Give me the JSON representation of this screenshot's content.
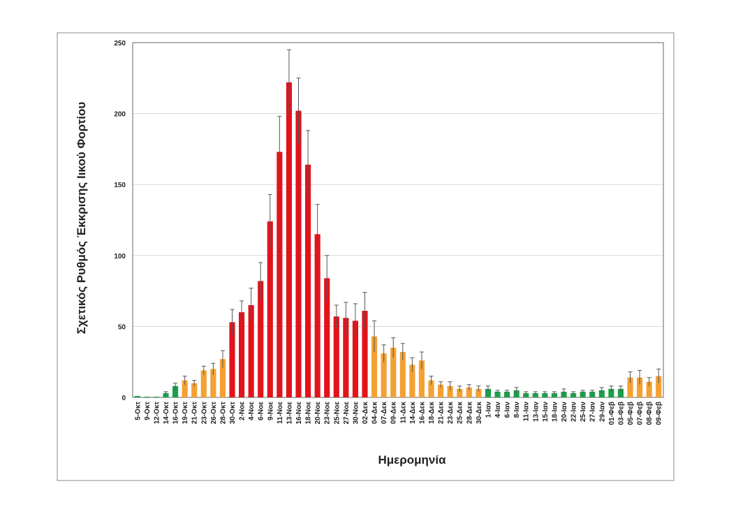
{
  "chart_data": {
    "type": "bar",
    "y_label": "Σχετικός Ρυθμός Έκκρισης Ιικού Φορτίου",
    "x_label": "Ημερομηνία",
    "categories": [
      "5-Οκτ",
      "9-Οκτ",
      "12-Οκτ",
      "14-Οκτ",
      "16-Οκτ",
      "19-Οκτ",
      "21-Οκτ",
      "23-Οκτ",
      "26-Οκτ",
      "28-Οκτ",
      "30-Οκτ",
      "2-Νοε",
      "4-Νοε",
      "6-Νοε",
      "9-Νοε",
      "11-Νοε",
      "13-Νοε",
      "16-Νοε",
      "18-Νοε",
      "20-Νοε",
      "23-Νοε",
      "25-Νοε",
      "27-Νοε",
      "30-Νοε",
      "02-Δεκ",
      "04-Δεκ",
      "07-Δεκ",
      "09-Δεκ",
      "11-Δεκ",
      "14-Δεκ",
      "16-Δεκ",
      "18-Δεκ",
      "21-Δεκ",
      "23-Δεκ",
      "25-Δεκ",
      "28-Δεκ",
      "30-Δεκ",
      "1-Ιαν",
      "4-Ιαν",
      "6-Ιαν",
      "8-Ιαν",
      "11-Ιαν",
      "13-Ιαν",
      "15-Ιαν",
      "18-Ιαν",
      "20-Ιαν",
      "22-Ιαν",
      "25-Ιαν",
      "27-Ιαν",
      "29-Ιαν",
      "01-Φεβ",
      "03-Φεβ",
      "05-Φεβ",
      "07-Φεβ",
      "08-Φεβ",
      "09-Φεβ"
    ],
    "values": [
      1,
      0.5,
      0.5,
      3,
      8,
      12,
      10,
      19,
      20,
      27,
      53,
      60,
      65,
      82,
      124,
      173,
      222,
      202,
      164,
      115,
      84,
      57,
      56,
      54,
      61,
      43,
      31,
      35,
      32,
      23,
      26,
      12,
      9,
      8,
      6,
      7,
      6,
      6,
      4,
      4,
      5,
      3,
      3,
      3,
      3,
      4,
      3,
      4,
      4,
      5,
      6,
      6,
      14,
      14,
      11,
      15
    ],
    "errors": [
      0,
      0,
      0,
      1,
      2,
      3,
      2,
      3,
      4,
      6,
      9,
      8,
      12,
      13,
      19,
      25,
      23,
      23,
      24,
      21,
      16,
      8,
      11,
      12,
      13,
      11,
      6,
      7,
      6,
      5,
      6,
      3,
      2,
      3,
      2,
      2,
      2,
      2,
      1,
      1,
      2,
      1,
      1,
      1,
      1,
      2,
      1,
      1,
      1,
      2,
      2,
      2,
      4,
      5,
      3,
      5
    ],
    "colors": [
      "#1e9e4a",
      "#1e9e4a",
      "#1e9e4a",
      "#1e9e4a",
      "#1e9e4a",
      "#f5a032",
      "#f5a032",
      "#f5a032",
      "#f5a032",
      "#f5a032",
      "#e3131b",
      "#e3131b",
      "#e3131b",
      "#e3131b",
      "#e3131b",
      "#e3131b",
      "#e3131b",
      "#e3131b",
      "#e3131b",
      "#e3131b",
      "#e3131b",
      "#e3131b",
      "#e3131b",
      "#e3131b",
      "#e3131b",
      "#f5a032",
      "#f5a032",
      "#f5a032",
      "#f5a032",
      "#f5a032",
      "#f5a032",
      "#f5a032",
      "#f5a032",
      "#f5a032",
      "#f5a032",
      "#f5a032",
      "#f5a032",
      "#1e9e4a",
      "#1e9e4a",
      "#1e9e4a",
      "#1e9e4a",
      "#1e9e4a",
      "#1e9e4a",
      "#1e9e4a",
      "#1e9e4a",
      "#1e9e4a",
      "#1e9e4a",
      "#1e9e4a",
      "#1e9e4a",
      "#1e9e4a",
      "#1e9e4a",
      "#1e9e4a",
      "#f5a032",
      "#f5a032",
      "#f5a032",
      "#f5a032"
    ],
    "ylim": [
      0,
      250
    ],
    "yticks": [
      0,
      50,
      100,
      150,
      200,
      250
    ],
    "grid": true
  }
}
